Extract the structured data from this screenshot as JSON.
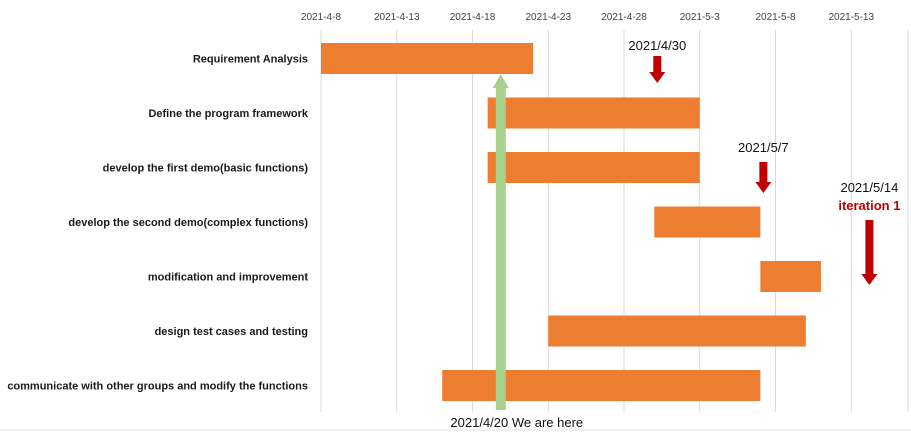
{
  "chart_data": {
    "type": "gantt",
    "x_axis": {
      "ticks": [
        "2021-4-8",
        "2021-4-13",
        "2021-4-18",
        "2021-4-23",
        "2021-4-28",
        "2021-5-3",
        "2021-5-8",
        "2021-5-13"
      ],
      "range": [
        "2021-04-08",
        "2021-05-17"
      ],
      "position": "top",
      "grid": true
    },
    "tasks": [
      {
        "name": "Requirement Analysis",
        "start": "2021-04-08",
        "end": "2021-04-22"
      },
      {
        "name": "Define the program framework",
        "start": "2021-04-19",
        "end": "2021-05-03"
      },
      {
        "name": "develop the first demo(basic functions)",
        "start": "2021-04-19",
        "end": "2021-05-03"
      },
      {
        "name": "develop the second demo(complex functions)",
        "start": "2021-04-30",
        "end": "2021-05-07"
      },
      {
        "name": "modification and improvement",
        "start": "2021-05-07",
        "end": "2021-05-11"
      },
      {
        "name": "design test cases and testing",
        "start": "2021-04-23",
        "end": "2021-05-10"
      },
      {
        "name": "communicate with other groups and modify the functions",
        "start": "2021-04-16",
        "end": "2021-05-07"
      }
    ],
    "current_marker": {
      "date": "2021-04-20",
      "label": "2021/4/20 We are here"
    },
    "milestones": [
      {
        "date": "2021-04-30",
        "label": "2021/4/30",
        "note": ""
      },
      {
        "date": "2021-05-07",
        "label": "2021/5/7",
        "note": ""
      },
      {
        "date": "2021-05-14",
        "label": "2021/5/14",
        "note": "iteration 1"
      }
    ],
    "colors": {
      "bar": "#ed7d31",
      "marker": "#a9d18e",
      "milestone_arrow": "#c00000",
      "grid": "#d9d9d9"
    }
  }
}
